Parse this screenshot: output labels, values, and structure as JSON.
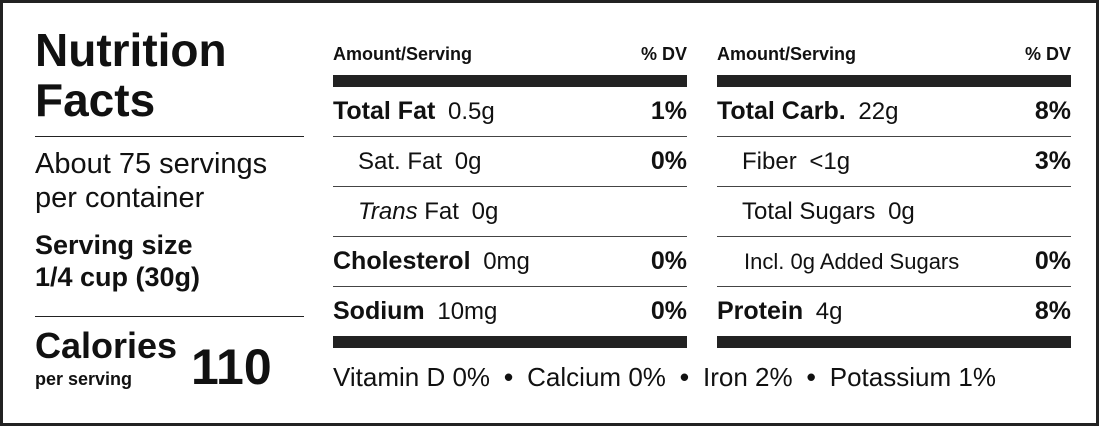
{
  "title": "Nutrition Facts",
  "servings": "About 75 servings per container",
  "serving_size": {
    "label": "Serving size",
    "value": "1/4 cup (30g)"
  },
  "calories": {
    "label": "Calories",
    "sublabel": "per serving",
    "value": 110
  },
  "tables": [
    {
      "header": [
        "Amount/Serving",
        "% DV"
      ],
      "rows": [
        {
          "name": "Total Fat",
          "amount": "0.5g",
          "dv": "1%",
          "bold": true,
          "indent": 0
        },
        {
          "name": "Sat. Fat",
          "amount": "0g",
          "dv": "0%",
          "bold": false,
          "indent": 1
        },
        {
          "name_italic": "Trans",
          "name": "Fat",
          "amount": "0g",
          "bold": false,
          "indent": 1
        },
        {
          "name": "Cholesterol",
          "amount": "0mg",
          "dv": "0%",
          "bold": true,
          "indent": 0
        },
        {
          "name": "Sodium",
          "amount": "10mg",
          "dv": "0%",
          "bold": true,
          "indent": 0
        }
      ]
    },
    {
      "header": [
        "Amount/Serving",
        "% DV"
      ],
      "rows": [
        {
          "name": "Total Carb.",
          "amount": "22g",
          "dv": "8%",
          "bold": true,
          "indent": 0
        },
        {
          "name": "Fiber",
          "amount": "<1g",
          "dv": "3%",
          "bold": false,
          "indent": 1
        },
        {
          "name": "Total Sugars",
          "amount": "0g",
          "bold": false,
          "indent": 1
        },
        {
          "name": "Incl. 0g Added Sugars",
          "dv": "0%",
          "bold": false,
          "indent": 2
        },
        {
          "name": "Protein",
          "amount": "4g",
          "dv": "8%",
          "bold": true,
          "indent": 0
        }
      ]
    }
  ],
  "footer": [
    {
      "name": "Vitamin D",
      "dv": "0%"
    },
    {
      "name": "Calcium",
      "dv": "0%"
    },
    {
      "name": "Iron",
      "dv": "2%"
    },
    {
      "name": "Potassium",
      "dv": "1%"
    }
  ]
}
